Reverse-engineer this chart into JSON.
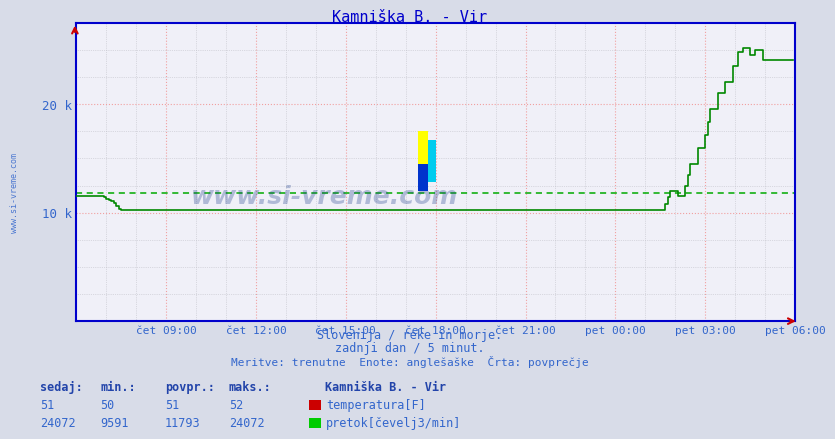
{
  "title": "Kamniška B. - Vir",
  "fig_bg_color": "#d8dce8",
  "plot_bg_color": "#f0f0f8",
  "grid_color_gray": "#c0c0c8",
  "grid_color_red": "#f0a0a0",
  "line_color_flow": "#008800",
  "avg_line_color": "#00aa00",
  "axis_color": "#0000cc",
  "text_color": "#3366cc",
  "bold_text_color": "#2244aa",
  "n_points": 288,
  "flow_avg": 11793,
  "ylim_max": 27500,
  "xtick_positions": [
    36,
    72,
    108,
    144,
    180,
    216,
    252,
    288
  ],
  "xtick_labels": [
    "čet 09:00",
    "čet 12:00",
    "čet 15:00",
    "čet 18:00",
    "čet 21:00",
    "pet 00:00",
    "pet 03:00",
    "pet 06:00"
  ],
  "ytick_vals": [
    10000,
    20000
  ],
  "ytick_labels": [
    "10 k",
    "20 k"
  ],
  "subtitle1": "Slovenija / reke in morje.",
  "subtitle2": "zadnji dan / 5 minut.",
  "subtitle3": "Meritve: trenutne  Enote: anglešaške  Črta: povprečje",
  "watermark_plot": "www.si-vreme.com",
  "watermark_side": "www.si-vreme.com",
  "legend_station": "Kamniška B. - Vir",
  "legend_temp": "temperatura[F]",
  "legend_flow": "pretok[čevelj3/min]",
  "table_headers": [
    "sedaj:",
    "min.:",
    "povpr.:",
    "maks.:"
  ],
  "table_temp": [
    51,
    50,
    51,
    52
  ],
  "table_flow": [
    24072,
    9591,
    11793,
    24072
  ],
  "temp_box_color": "#cc0000",
  "flow_box_color": "#00cc00"
}
